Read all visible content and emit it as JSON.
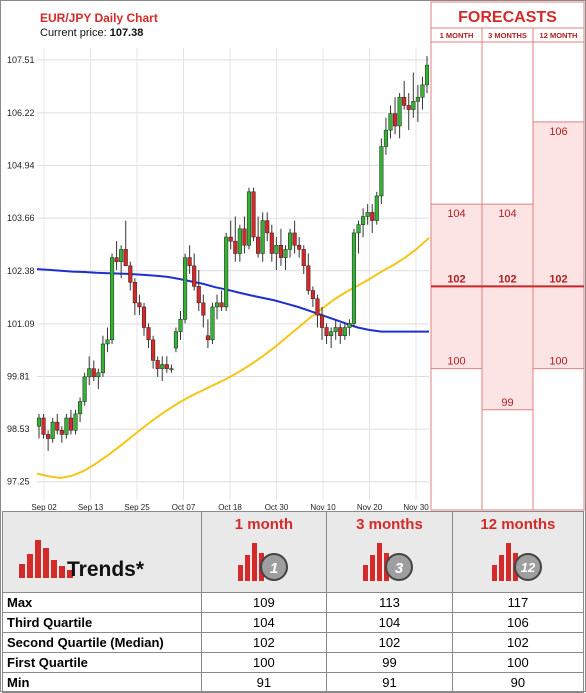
{
  "chart_data": {
    "type": "candlestick",
    "title": "EUR/JPY Daily Chart",
    "current_price_label": "Current price:",
    "current_price": "107.38",
    "y_ticks": [
      "107.51",
      "106.22",
      "104.94",
      "103.66",
      "102.38",
      "101.09",
      "99.81",
      "98.53",
      "97.25"
    ],
    "x_ticks": [
      "Sep 02",
      "Sep 13",
      "Sep 25",
      "Oct 07",
      "Oct 18",
      "Oct 30",
      "Nov 10",
      "Nov 20",
      "Nov 30"
    ],
    "ylim": [
      97.0,
      107.7
    ],
    "candles": [
      [
        98.6,
        98.9,
        98.3,
        98.8
      ],
      [
        98.8,
        98.9,
        98.3,
        98.4
      ],
      [
        98.4,
        98.5,
        98.0,
        98.3
      ],
      [
        98.3,
        98.8,
        98.2,
        98.7
      ],
      [
        98.7,
        98.9,
        98.4,
        98.5
      ],
      [
        98.5,
        98.6,
        98.2,
        98.4
      ],
      [
        98.4,
        98.9,
        98.3,
        98.8
      ],
      [
        98.8,
        99.0,
        98.4,
        98.5
      ],
      [
        98.5,
        99.0,
        98.4,
        98.9
      ],
      [
        98.9,
        99.3,
        98.7,
        99.2
      ],
      [
        99.2,
        99.9,
        99.1,
        99.8
      ],
      [
        99.8,
        100.3,
        99.6,
        100.0
      ],
      [
        100.0,
        100.2,
        99.7,
        99.8
      ],
      [
        99.8,
        100.0,
        99.5,
        99.9
      ],
      [
        99.9,
        100.8,
        99.8,
        100.6
      ],
      [
        100.6,
        101.0,
        100.4,
        100.7
      ],
      [
        100.7,
        102.8,
        100.6,
        102.7
      ],
      [
        102.7,
        103.1,
        102.4,
        102.6
      ],
      [
        102.6,
        103.0,
        102.2,
        102.9
      ],
      [
        102.9,
        103.6,
        102.5,
        102.5
      ],
      [
        102.5,
        102.6,
        101.9,
        102.1
      ],
      [
        102.1,
        102.2,
        101.3,
        101.6
      ],
      [
        101.6,
        101.8,
        101.3,
        101.5
      ],
      [
        101.5,
        101.6,
        100.8,
        101.0
      ],
      [
        101.0,
        101.1,
        100.5,
        100.7
      ],
      [
        100.7,
        100.8,
        100.0,
        100.2
      ],
      [
        100.2,
        100.3,
        99.8,
        100.0
      ],
      [
        100.0,
        100.3,
        99.7,
        100.1
      ],
      [
        100.1,
        100.3,
        99.9,
        100.0
      ],
      [
        100.0,
        100.1,
        99.9,
        100.0
      ],
      [
        100.5,
        101.0,
        100.4,
        100.9
      ],
      [
        100.9,
        101.4,
        100.7,
        101.2
      ],
      [
        101.2,
        102.8,
        101.1,
        102.7
      ],
      [
        102.7,
        103.0,
        102.3,
        102.5
      ],
      [
        102.5,
        102.8,
        101.9,
        102.0
      ],
      [
        102.0,
        102.4,
        101.4,
        101.6
      ],
      [
        101.6,
        101.8,
        101.0,
        101.3
      ],
      [
        100.8,
        101.2,
        100.5,
        100.7
      ],
      [
        100.7,
        101.6,
        100.6,
        101.5
      ],
      [
        101.5,
        101.8,
        101.2,
        101.6
      ],
      [
        101.6,
        101.9,
        101.4,
        101.5
      ],
      [
        101.5,
        103.3,
        101.4,
        103.2
      ],
      [
        103.2,
        103.6,
        102.9,
        103.1
      ],
      [
        103.1,
        103.7,
        102.6,
        102.8
      ],
      [
        102.8,
        103.5,
        102.6,
        103.4
      ],
      [
        103.4,
        103.7,
        102.8,
        103.0
      ],
      [
        103.0,
        104.4,
        102.9,
        104.3
      ],
      [
        104.3,
        104.4,
        103.1,
        103.2
      ],
      [
        103.2,
        103.7,
        102.7,
        102.8
      ],
      [
        102.8,
        103.8,
        102.6,
        103.6
      ],
      [
        103.6,
        103.8,
        103.1,
        103.3
      ],
      [
        103.3,
        103.5,
        102.6,
        102.8
      ],
      [
        102.8,
        103.2,
        102.4,
        103.0
      ],
      [
        103.0,
        103.4,
        102.5,
        102.7
      ],
      [
        102.7,
        103.0,
        102.4,
        102.9
      ],
      [
        102.9,
        103.4,
        102.7,
        103.3
      ],
      [
        103.3,
        103.6,
        102.8,
        103.0
      ],
      [
        103.0,
        103.2,
        102.7,
        102.9
      ],
      [
        102.9,
        103.0,
        102.3,
        102.5
      ],
      [
        102.5,
        102.8,
        101.8,
        101.9
      ],
      [
        101.9,
        102.0,
        101.5,
        101.7
      ],
      [
        101.7,
        101.8,
        101.0,
        101.3
      ],
      [
        101.3,
        101.5,
        100.7,
        101.0
      ],
      [
        101.0,
        101.1,
        100.6,
        100.8
      ],
      [
        100.8,
        101.0,
        100.5,
        100.9
      ],
      [
        100.9,
        101.2,
        100.7,
        101.0
      ],
      [
        101.0,
        101.1,
        100.6,
        100.8
      ],
      [
        100.8,
        101.1,
        100.7,
        101.0
      ],
      [
        101.0,
        101.2,
        100.8,
        101.1
      ],
      [
        101.1,
        103.4,
        101.0,
        103.3
      ],
      [
        103.3,
        103.6,
        102.8,
        103.5
      ],
      [
        103.5,
        103.9,
        103.2,
        103.7
      ],
      [
        103.7,
        104.0,
        103.5,
        103.8
      ],
      [
        103.8,
        104.0,
        103.3,
        103.6
      ],
      [
        103.6,
        104.3,
        103.5,
        104.2
      ],
      [
        104.2,
        105.6,
        104.0,
        105.4
      ],
      [
        105.4,
        106.1,
        105.2,
        105.8
      ],
      [
        105.8,
        106.4,
        105.6,
        106.2
      ],
      [
        106.2,
        106.6,
        105.7,
        105.9
      ],
      [
        105.9,
        106.7,
        105.6,
        106.6
      ],
      [
        106.6,
        107.0,
        106.3,
        106.4
      ],
      [
        106.4,
        106.7,
        105.8,
        106.3
      ],
      [
        106.3,
        107.2,
        106.1,
        106.5
      ],
      [
        106.5,
        106.9,
        106.0,
        106.6
      ],
      [
        106.6,
        107.1,
        106.3,
        106.9
      ],
      [
        106.9,
        107.6,
        106.7,
        107.38
      ]
    ],
    "ma_fast_color": "#1e2fd0",
    "ma_slow_color": "#f5c518",
    "ma_blue": [
      102.42,
      102.4,
      102.38,
      102.36,
      102.35,
      102.33,
      102.32,
      102.31,
      102.3,
      102.28,
      102.26,
      102.23,
      102.18,
      102.12,
      102.06,
      101.98,
      101.92,
      101.85,
      101.78,
      101.72,
      101.66,
      101.58,
      101.5,
      101.4,
      101.3,
      101.2,
      101.1,
      101.0,
      100.94,
      100.9,
      100.9,
      100.9,
      100.9,
      100.9
    ],
    "ma_yellow": [
      97.45,
      97.38,
      97.34,
      97.4,
      97.52,
      97.7,
      97.9,
      98.12,
      98.35,
      98.58,
      98.8,
      99.0,
      99.18,
      99.34,
      99.48,
      99.62,
      99.76,
      99.92,
      100.1,
      100.3,
      100.52,
      100.76,
      101.0,
      101.24,
      101.46,
      101.68,
      101.86,
      102.02,
      102.18,
      102.36,
      102.52,
      102.7,
      102.92,
      103.18
    ],
    "forecast": {
      "title": "FORECASTS",
      "columns": [
        "1 MONTH",
        "3 MONTHS",
        "12 MONTH"
      ],
      "upper": [
        "104",
        "104",
        "106"
      ],
      "upper_values": [
        104,
        104,
        106
      ],
      "median": [
        "102",
        "102",
        "102"
      ],
      "median_value": 102,
      "lower": [
        "100",
        "99",
        "100"
      ],
      "lower_values": [
        100,
        99,
        100
      ],
      "band_color": "#fde4e4",
      "line_color": "#e08080",
      "median_color": "#c62828"
    }
  },
  "trends": {
    "label": "Trends*",
    "columns": [
      "1 month",
      "3 months",
      "12 months"
    ],
    "badges": [
      "1",
      "3",
      "12"
    ],
    "rows": [
      {
        "label": "Max",
        "values": [
          "109",
          "113",
          "117"
        ]
      },
      {
        "label": "Third Quartile",
        "values": [
          "104",
          "104",
          "106"
        ]
      },
      {
        "label": "Second Quartile (Median)",
        "values": [
          "102",
          "102",
          "102"
        ]
      },
      {
        "label": "First Quartile",
        "values": [
          "100",
          "99",
          "100"
        ]
      },
      {
        "label": "Min",
        "values": [
          "91",
          "91",
          "90"
        ]
      }
    ]
  }
}
